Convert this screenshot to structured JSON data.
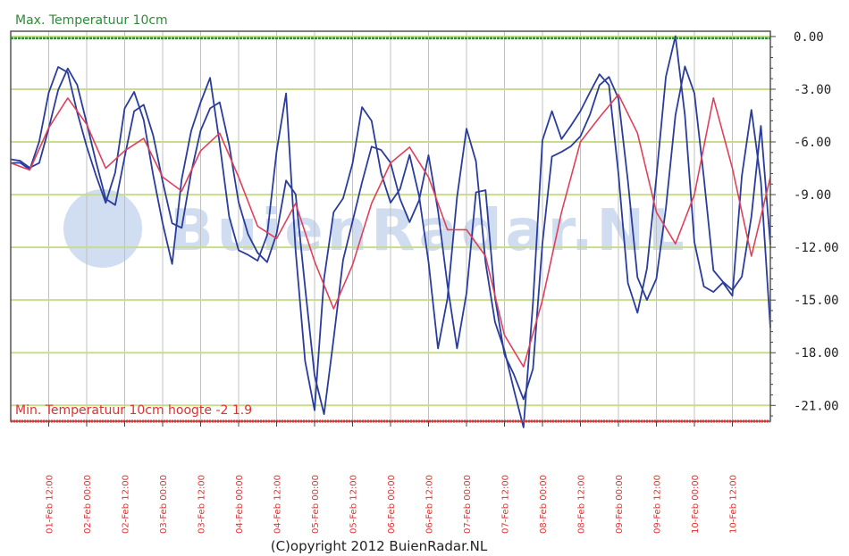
{
  "chart_data": {
    "type": "line",
    "max_label": "Max. Temperatuur 10cm",
    "min_label": "Min. Temperatuur 10cm hoogte -2 1.9",
    "copyright": "(C)opyright 2012 BuienRadar.NL",
    "watermark": "BuienRadar.NL",
    "x_unit": "hours since 01-Feb 00:00",
    "x_range": [
      0,
      240
    ],
    "ylim": [
      -21.9,
      0.3
    ],
    "y_ticks": [
      "0.00",
      "-3.00",
      "-6.00",
      "-9.00",
      "-12.00",
      "-15.00",
      "-18.00",
      "-21.00"
    ],
    "y_tick_values": [
      0,
      -3,
      -6,
      -9,
      -12,
      -15,
      -18,
      -21
    ],
    "x_ticks": [
      {
        "h": 12,
        "label": "01-Feb 12:00"
      },
      {
        "h": 24,
        "label": "02-Feb 00:00"
      },
      {
        "h": 36,
        "label": "02-Feb 12:00"
      },
      {
        "h": 48,
        "label": "03-Feb 00:00"
      },
      {
        "h": 60,
        "label": "03-Feb 12:00"
      },
      {
        "h": 72,
        "label": "04-Feb 00:00"
      },
      {
        "h": 84,
        "label": "04-Feb 12:00"
      },
      {
        "h": 96,
        "label": "05-Feb 00:00"
      },
      {
        "h": 108,
        "label": "05-Feb 12:00"
      },
      {
        "h": 120,
        "label": "06-Feb 00:00"
      },
      {
        "h": 132,
        "label": "06-Feb 12:00"
      },
      {
        "h": 144,
        "label": "07-Feb 00:00"
      },
      {
        "h": 156,
        "label": "07-Feb 12:00"
      },
      {
        "h": 168,
        "label": "08-Feb 00:00"
      },
      {
        "h": 180,
        "label": "08-Feb 12:00"
      },
      {
        "h": 192,
        "label": "09-Feb 00:00"
      },
      {
        "h": 204,
        "label": "09-Feb 12:00"
      },
      {
        "h": 216,
        "label": "10-Feb 00:00"
      },
      {
        "h": 228,
        "label": "10-Feb 12:00"
      }
    ],
    "max_line": -0.1,
    "min_line": -21.9,
    "grid": true,
    "colors": {
      "blue": "#2a3c9c",
      "red": "#e0405a",
      "green_grid": "#c8dc8c",
      "vert_grid": "#c0c0c0",
      "max_color": "#2e8b3a",
      "min_color": "#e03030",
      "watermark": "#7aa0d8"
    },
    "series": [
      {
        "color": "#2a3c9c",
        "x": [
          0,
          3,
          6,
          9,
          12,
          15,
          18,
          21,
          24,
          27,
          30,
          33,
          36,
          39,
          42,
          45,
          48,
          51,
          54,
          57,
          60,
          63,
          66,
          69,
          72,
          75,
          78,
          81,
          84,
          87,
          90,
          93,
          96,
          99,
          102,
          105,
          108,
          111,
          114,
          117,
          120,
          123,
          126,
          129,
          132,
          135,
          138,
          141,
          144,
          147,
          150,
          153,
          156,
          159,
          162,
          165,
          168,
          171,
          174,
          177,
          180,
          183,
          186,
          189,
          192,
          195,
          198,
          201,
          204,
          207,
          210,
          213,
          216,
          219,
          222,
          225,
          228,
          231,
          234,
          237,
          240
        ],
        "y": [
          -7.2,
          -7.4,
          -7.8,
          -6.0,
          -3.0,
          -1.5,
          -2.0,
          -4.5,
          -6.5,
          -8.0,
          -9.3,
          -7.5,
          -4.0,
          -3.3,
          -5.0,
          -8.0,
          -10.5,
          -12.7,
          -8.0,
          -5.5,
          -4.0,
          -2.5,
          -6.0,
          -10.0,
          -12.0,
          -12.5,
          -13.0,
          -11.5,
          -6.5,
          -3.0,
          -12.0,
          -18.5,
          -21.5,
          -14.0,
          -10.0,
          -9.0,
          -7.0,
          -4.0,
          -5.0,
          -8.0,
          -9.5,
          -8.5,
          -6.5,
          -9.0,
          -13.0,
          -18.0,
          -15.0,
          -9.0,
          -5.0,
          -7.0,
          -13.0,
          -16.5,
          -18.0,
          -20.0,
          -22.0,
          -15.0,
          -6.0,
          -4.5,
          -6.0,
          -5.0,
          -4.0,
          -3.0,
          -2.2,
          -3.0,
          -8.0,
          -14.0,
          -15.5,
          -13.0,
          -8.0,
          -2.5,
          -0.2,
          -4.5,
          -11.5,
          -14.0,
          -14.5,
          -14.2,
          -15.0,
          -8.0,
          -4.0,
          -8.0,
          -16.5
        ]
      },
      {
        "color": "#2a3c9c",
        "x": [
          0,
          3,
          6,
          9,
          12,
          15,
          18,
          21,
          24,
          27,
          30,
          33,
          36,
          39,
          42,
          45,
          48,
          51,
          54,
          57,
          60,
          63,
          66,
          69,
          72,
          75,
          78,
          81,
          84,
          87,
          90,
          93,
          96,
          99,
          102,
          105,
          108,
          111,
          114,
          117,
          120,
          123,
          126,
          129,
          132,
          135,
          138,
          141,
          144,
          147,
          150,
          153,
          156,
          159,
          162,
          165,
          168,
          171,
          174,
          177,
          180,
          183,
          186,
          189,
          192,
          195,
          198,
          201,
          204,
          207,
          210,
          213,
          216,
          219,
          222,
          225,
          228,
          231,
          234,
          237,
          240
        ],
        "y": [
          -7.2,
          -7.3,
          -7.5,
          -7.0,
          -5.0,
          -3.0,
          -2.0,
          -3.0,
          -5.0,
          -7.0,
          -9.0,
          -9.5,
          -7.0,
          -4.5,
          -4.0,
          -5.5,
          -8.0,
          -10.5,
          -11.0,
          -8.0,
          -5.5,
          -4.0,
          -3.5,
          -6.0,
          -9.5,
          -11.5,
          -12.5,
          -12.8,
          -11.0,
          -8.0,
          -9.0,
          -14.5,
          -19.5,
          -21.5,
          -17.0,
          -12.5,
          -10.5,
          -8.5,
          -6.5,
          -6.5,
          -7.0,
          -9.0,
          -10.5,
          -9.5,
          -7.0,
          -10.0,
          -14.0,
          -17.5,
          -14.5,
          -9.0,
          -9.0,
          -15.0,
          -18.0,
          -19.0,
          -20.5,
          -19.0,
          -12.0,
          -7.0,
          -6.5,
          -6.0,
          -5.5,
          -4.5,
          -3.0,
          -2.5,
          -3.5,
          -8.0,
          -13.5,
          -15.0,
          -14.0,
          -10.0,
          -4.5,
          -1.5,
          -3.0,
          -8.0,
          -13.5,
          -14.2,
          -14.5,
          -13.5,
          -10.0,
          -5.0,
          -12.0
        ]
      },
      {
        "color": "#e0405a",
        "x": [
          0,
          6,
          12,
          18,
          24,
          30,
          36,
          42,
          48,
          54,
          60,
          66,
          72,
          78,
          84,
          90,
          96,
          102,
          108,
          114,
          120,
          126,
          132,
          138,
          144,
          150,
          156,
          162,
          168,
          174,
          180,
          186,
          192,
          198,
          204,
          210,
          216,
          222,
          228,
          234,
          240
        ],
        "y": [
          -7.2,
          -7.6,
          -5.2,
          -3.5,
          -5.0,
          -7.5,
          -6.5,
          -5.8,
          -8.0,
          -8.8,
          -6.5,
          -5.5,
          -8.0,
          -10.8,
          -11.5,
          -9.5,
          -12.8,
          -15.5,
          -13.0,
          -9.5,
          -7.2,
          -6.3,
          -8.0,
          -11.0,
          -11.0,
          -12.5,
          -17.0,
          -18.8,
          -15.0,
          -10.0,
          -6.0,
          -4.6,
          -3.3,
          -5.5,
          -10.0,
          -11.8,
          -9.0,
          -3.5,
          -7.5,
          -12.5,
          -8.0
        ]
      }
    ]
  }
}
